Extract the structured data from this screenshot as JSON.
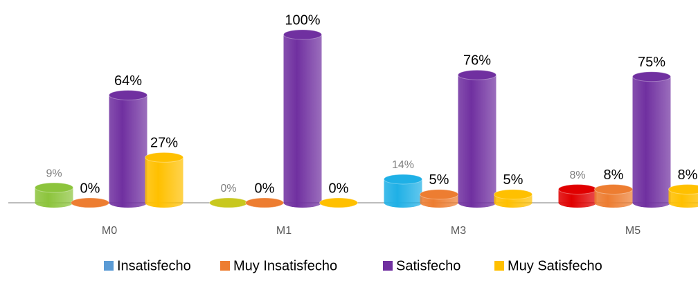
{
  "chart_data": {
    "type": "bar3d",
    "categories": [
      "M0",
      "M1",
      "M3",
      "M5"
    ],
    "ylim": [
      0,
      100
    ],
    "series": [
      {
        "name": "Insatisfecho",
        "color": "#5b9bd5",
        "point_colors": [
          "#8cc43c",
          "#c8c81e",
          "#1fb0e6",
          "#e00000"
        ],
        "values": [
          9,
          0,
          14,
          8
        ],
        "value_labels": [
          "9%",
          "0%",
          "14%",
          "8%"
        ]
      },
      {
        "name": "Muy Insatisfecho",
        "color": "#ed7d31",
        "values": [
          0,
          0,
          5,
          8
        ],
        "value_labels": [
          "0%",
          "0%",
          "5%",
          "8%"
        ]
      },
      {
        "name": "Satisfecho",
        "color": "#7030a0",
        "values": [
          64,
          100,
          76,
          75
        ],
        "value_labels": [
          "64%",
          "100%",
          "76%",
          "75%"
        ]
      },
      {
        "name": "Muy Satisfecho",
        "color": "#ffc000",
        "values": [
          27,
          0,
          5,
          8
        ],
        "value_labels": [
          "27%",
          "0%",
          "5%",
          "8%"
        ]
      }
    ]
  }
}
